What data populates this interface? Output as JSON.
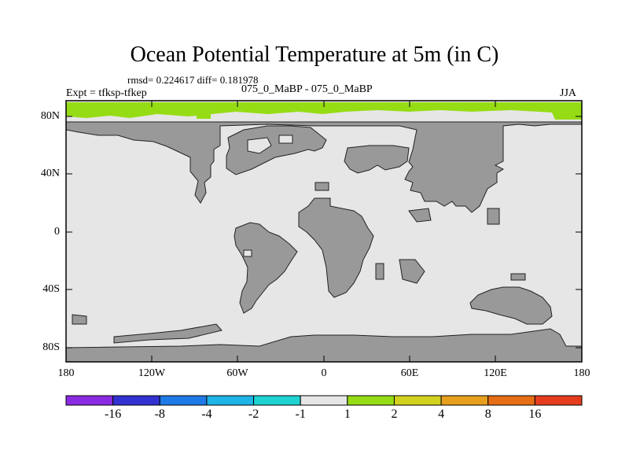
{
  "title": "Ocean Potential Temperature at 5m (in C)",
  "stats": "rmsd= 0.224617 diff= 0.181978",
  "expt": "Expt = tfksp-tfkep",
  "subtitle": "075_0_MaBP - 075_0_MaBP",
  "season": "JJA",
  "lat_labels": [
    "80N",
    "40N",
    "0",
    "40S",
    "80S"
  ],
  "lon_labels": [
    "180",
    "120W",
    "60W",
    "0",
    "60E",
    "120E",
    "180"
  ],
  "colorbar": {
    "colors": [
      "#8a2be2",
      "#3232d2",
      "#1e7ae6",
      "#1eb4e6",
      "#1ed2d2",
      "#e6e6e6",
      "#96dc14",
      "#d2d21e",
      "#e6a01e",
      "#e66e14",
      "#e63c1e"
    ],
    "labels": [
      "-16",
      "-8",
      "-4",
      "-2",
      "-1",
      "1",
      "2",
      "4",
      "8",
      "16"
    ]
  },
  "colors": {
    "land": "#999999",
    "ocean": "#e6e6e6",
    "warm": "#96dc14"
  }
}
